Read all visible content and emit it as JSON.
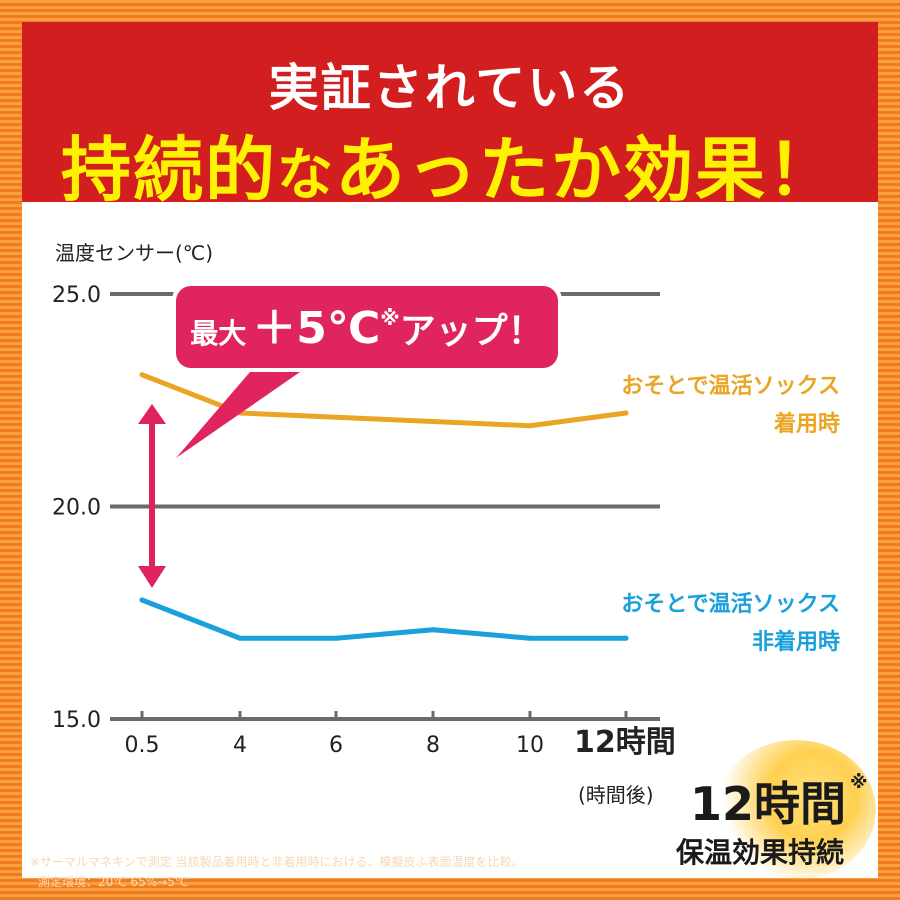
{
  "header": {
    "line1": "実証されている",
    "line2_a": "持続的",
    "line2_b": "な",
    "line2_c": "あったか効果！"
  },
  "callout": {
    "prefix": "最大",
    "value": "＋5℃",
    "mark": "※",
    "suffix": "アップ！"
  },
  "badge": {
    "line1": "12時間",
    "mark": "※",
    "line2": "保温効果持続"
  },
  "footnote": {
    "line1": "※サーマルマネキンで測定 当該製品着用時と非着用時における、模擬皮ふ表面温度を比較。",
    "line2": "測定環境：20℃ 65%→5℃"
  },
  "colors": {
    "wearing": "#eba524",
    "not_wearing": "#1aa0dc",
    "arrow": "#e0245e",
    "header_bg": "#d21e1e",
    "header_accent": "#fff200"
  },
  "chart_data": {
    "type": "line",
    "ylabel": "温度センサー(℃)",
    "xlabel": "(時間後)",
    "x": [
      0.5,
      4,
      6,
      8,
      10,
      12
    ],
    "x_tick_labels": [
      "0.5",
      "4",
      "6",
      "8",
      "10",
      "12時間"
    ],
    "y_ticks": [
      25.0,
      20.0,
      15.0
    ],
    "y_tick_labels": [
      "25.0",
      "20.0",
      "15.0"
    ],
    "ylim": [
      15.0,
      25.0
    ],
    "grid": true,
    "series": [
      {
        "name": "おそとで温活ソックス 着用時",
        "label_line1": "おそとで温活ソックス",
        "label_line2": "着用時",
        "values": [
          23.1,
          22.2,
          22.1,
          22.0,
          21.9,
          22.2
        ]
      },
      {
        "name": "おそとで温活ソックス 非着用時",
        "label_line1": "おそとで温活ソックス",
        "label_line2": "非着用時",
        "values": [
          17.8,
          16.9,
          16.9,
          17.1,
          16.9,
          16.9
        ]
      }
    ]
  }
}
